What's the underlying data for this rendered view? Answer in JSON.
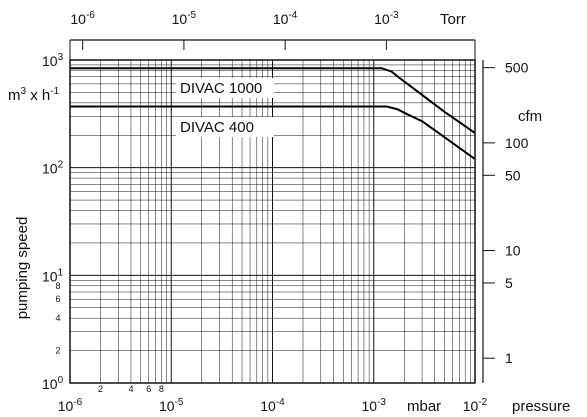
{
  "chart_data": {
    "type": "line",
    "x_scale": "log",
    "y_scale": "log",
    "xlim": [
      1e-06,
      0.01
    ],
    "ylim": [
      1,
      1000
    ],
    "xlabel": "pressure",
    "x_unit": "mbar",
    "ylabel": "pumping speed",
    "y_unit": "m3 x h-1",
    "top_axis": {
      "unit": "Torr",
      "ticks": [
        "10-6",
        "10-5",
        "10-4",
        "10-3"
      ]
    },
    "right_axis": {
      "unit": "cfm",
      "ticks": [
        "500",
        "100",
        "50",
        "10",
        "5",
        "1"
      ]
    },
    "x_ticks": [
      "10-6",
      "10-5",
      "10-4",
      "10-3",
      "10-2"
    ],
    "x_minor_tick_labels": [
      "2",
      "4",
      "6",
      "8"
    ],
    "y_ticks": [
      "100",
      "101",
      "102",
      "103"
    ],
    "y_minor_tick_labels": [
      "8",
      "6",
      "4",
      "2"
    ],
    "grid": true,
    "series": [
      {
        "name": "DIVAC 1000",
        "x": [
          1e-06,
          0.0001,
          0.0012,
          0.0015,
          0.0018,
          0.0025,
          0.005,
          0.01
        ],
        "y": [
          840,
          840,
          840,
          780,
          680,
          540,
          330,
          210
        ]
      },
      {
        "name": "DIVAC 400",
        "x": [
          1e-06,
          0.0001,
          0.00134,
          0.0017,
          0.0022,
          0.003,
          0.006,
          0.01
        ],
        "y": [
          370,
          370,
          370,
          350,
          310,
          270,
          170,
          120
        ]
      }
    ]
  }
}
